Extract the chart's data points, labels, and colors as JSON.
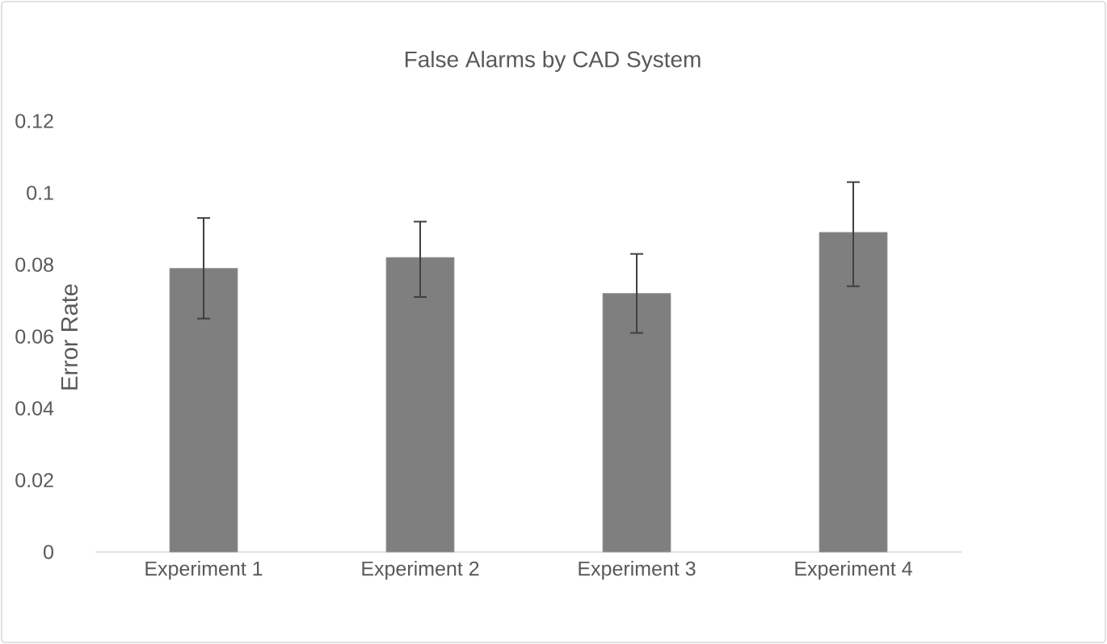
{
  "chart_data": {
    "type": "bar",
    "title": "False Alarms by CAD System",
    "ylabel": "Error Rate",
    "categories": [
      "Experiment 1",
      "Experiment 2",
      "Experiment 3",
      "Experiment 4"
    ],
    "values": [
      0.079,
      0.082,
      0.072,
      0.089
    ],
    "errors": [
      [
        0.065,
        0.093
      ],
      [
        0.071,
        0.092
      ],
      [
        0.061,
        0.083
      ],
      [
        0.074,
        0.103
      ]
    ],
    "color": "#7f7f7f",
    "ylim": [
      0,
      0.12
    ],
    "yticks": [
      0,
      0.02,
      0.04,
      0.06,
      0.08,
      0.1,
      0.12
    ],
    "grid": false
  }
}
